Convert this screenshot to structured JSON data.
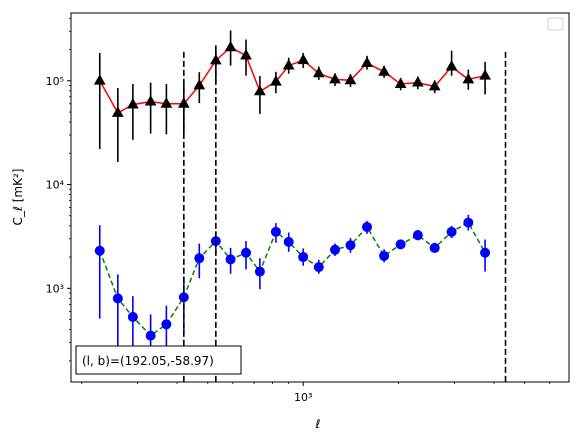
{
  "chart_data": {
    "type": "line",
    "xlabel": "ℓ",
    "ylabel": "C_ℓ [mK²]",
    "xscale": "log",
    "yscale": "log",
    "xlim": [
      185,
      6900
    ],
    "ylim": [
      125,
      450000
    ],
    "grid": false,
    "legend": "top-right",
    "x_ticks": [
      {
        "value": 1000,
        "label": "10³"
      }
    ],
    "y_ticks": [
      {
        "value": 1000,
        "label": "10³"
      },
      {
        "value": 10000,
        "label": "10⁴"
      },
      {
        "value": 100000,
        "label": "10⁵"
      }
    ],
    "vlines": [
      420,
      530,
      4350
    ],
    "annotation": "(l, b)=(192.05,-58.97)",
    "series": [
      {
        "marker": "triangle",
        "marker_color": "#000000",
        "line_color": "#ff0000",
        "line_style": "solid",
        "errorbar_color": "#000000",
        "points": [
          {
            "x": 228,
            "y": 100000,
            "lo": 22000,
            "hi": 185000
          },
          {
            "x": 260,
            "y": 49000,
            "lo": 16500,
            "hi": 85000
          },
          {
            "x": 290,
            "y": 59000,
            "lo": 27000,
            "hi": 93000
          },
          {
            "x": 330,
            "y": 63000,
            "lo": 31000,
            "hi": 96000
          },
          {
            "x": 370,
            "y": 60000,
            "lo": 30500,
            "hi": 93000
          },
          {
            "x": 420,
            "y": 60000,
            "lo": 31000,
            "hi": 93000
          },
          {
            "x": 470,
            "y": 90000,
            "lo": 61000,
            "hi": 121000
          },
          {
            "x": 530,
            "y": 157000,
            "lo": 97000,
            "hi": 220000
          },
          {
            "x": 590,
            "y": 210000,
            "lo": 140000,
            "hi": 305000
          },
          {
            "x": 660,
            "y": 175000,
            "lo": 112000,
            "hi": 250000
          },
          {
            "x": 730,
            "y": 79000,
            "lo": 48000,
            "hi": 111000
          },
          {
            "x": 820,
            "y": 98000,
            "lo": 76000,
            "hi": 122000
          },
          {
            "x": 900,
            "y": 140000,
            "lo": 117000,
            "hi": 167000
          },
          {
            "x": 1000,
            "y": 158000,
            "lo": 133000,
            "hi": 185000
          },
          {
            "x": 1120,
            "y": 118000,
            "lo": 102000,
            "hi": 137000
          },
          {
            "x": 1260,
            "y": 103000,
            "lo": 89000,
            "hi": 118000
          },
          {
            "x": 1410,
            "y": 101000,
            "lo": 87000,
            "hi": 116000
          },
          {
            "x": 1590,
            "y": 148000,
            "lo": 128000,
            "hi": 174000
          },
          {
            "x": 1800,
            "y": 122000,
            "lo": 107000,
            "hi": 139000
          },
          {
            "x": 2030,
            "y": 93000,
            "lo": 81000,
            "hi": 106000
          },
          {
            "x": 2300,
            "y": 96000,
            "lo": 83000,
            "hi": 110000
          },
          {
            "x": 2600,
            "y": 88000,
            "lo": 76000,
            "hi": 101000
          },
          {
            "x": 2940,
            "y": 137000,
            "lo": 112000,
            "hi": 195000
          },
          {
            "x": 3320,
            "y": 103000,
            "lo": 82000,
            "hi": 128000
          },
          {
            "x": 3750,
            "y": 112000,
            "lo": 74000,
            "hi": 152000
          }
        ]
      },
      {
        "marker": "circle",
        "marker_color": "#0000ff",
        "line_color": "#008000",
        "line_style": "dashed",
        "errorbar_color": "#0000ff",
        "points": [
          {
            "x": 228,
            "y": 2300,
            "lo": 510,
            "hi": 4050
          },
          {
            "x": 260,
            "y": 800,
            "lo": 240,
            "hi": 1360
          },
          {
            "x": 290,
            "y": 530,
            "lo": 210,
            "hi": 840
          },
          {
            "x": 330,
            "y": 350,
            "lo": 180,
            "hi": 560
          },
          {
            "x": 370,
            "y": 450,
            "lo": 230,
            "hi": 680
          },
          {
            "x": 420,
            "y": 820,
            "lo": 370,
            "hi": 1300
          },
          {
            "x": 470,
            "y": 1950,
            "lo": 1250,
            "hi": 2700
          },
          {
            "x": 530,
            "y": 2850,
            "lo": 2150,
            "hi": 3550
          },
          {
            "x": 590,
            "y": 1900,
            "lo": 1380,
            "hi": 2450
          },
          {
            "x": 660,
            "y": 2200,
            "lo": 1520,
            "hi": 2850
          },
          {
            "x": 730,
            "y": 1450,
            "lo": 980,
            "hi": 1950
          },
          {
            "x": 820,
            "y": 3500,
            "lo": 2750,
            "hi": 4250
          },
          {
            "x": 900,
            "y": 2800,
            "lo": 2250,
            "hi": 3450
          },
          {
            "x": 1000,
            "y": 2000,
            "lo": 1650,
            "hi": 2420
          },
          {
            "x": 1120,
            "y": 1600,
            "lo": 1380,
            "hi": 1880
          },
          {
            "x": 1260,
            "y": 2350,
            "lo": 2050,
            "hi": 2700
          },
          {
            "x": 1410,
            "y": 2600,
            "lo": 2200,
            "hi": 3050
          },
          {
            "x": 1590,
            "y": 3900,
            "lo": 3350,
            "hi": 4450
          },
          {
            "x": 1800,
            "y": 2050,
            "lo": 1780,
            "hi": 2380
          },
          {
            "x": 2030,
            "y": 2650,
            "lo": 2400,
            "hi": 2950
          },
          {
            "x": 2300,
            "y": 3250,
            "lo": 2900,
            "hi": 3650
          },
          {
            "x": 2600,
            "y": 2450,
            "lo": 2200,
            "hi": 2750
          },
          {
            "x": 2940,
            "y": 3500,
            "lo": 3050,
            "hi": 4000
          },
          {
            "x": 3320,
            "y": 4300,
            "lo": 3600,
            "hi": 5100
          },
          {
            "x": 3750,
            "y": 2200,
            "lo": 1450,
            "hi": 2950
          }
        ]
      }
    ]
  }
}
